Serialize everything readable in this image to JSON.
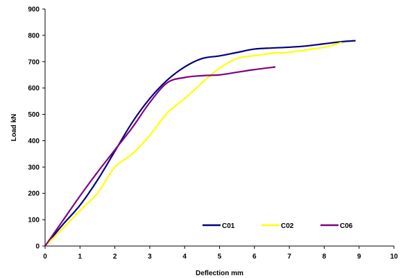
{
  "chart_data": {
    "type": "line",
    "title": "",
    "xlabel": "Deflection mm",
    "ylabel": "Load kN",
    "xlim": [
      0,
      10
    ],
    "ylim": [
      0,
      900
    ],
    "xticks": [
      0,
      1,
      2,
      3,
      4,
      5,
      6,
      7,
      8,
      9,
      10
    ],
    "yticks": [
      0,
      100,
      200,
      300,
      400,
      500,
      600,
      700,
      800,
      900
    ],
    "grid": false,
    "legend_position": "bottom-right",
    "series": [
      {
        "name": "C01",
        "color": "#000080",
        "points": [
          [
            0,
            0
          ],
          [
            0.5,
            80
          ],
          [
            1,
            155
          ],
          [
            1.5,
            250
          ],
          [
            2,
            360
          ],
          [
            2.5,
            470
          ],
          [
            3,
            560
          ],
          [
            3.5,
            630
          ],
          [
            4,
            680
          ],
          [
            4.5,
            712
          ],
          [
            5,
            722
          ],
          [
            5.5,
            735
          ],
          [
            6,
            748
          ],
          [
            6.5,
            752
          ],
          [
            7,
            755
          ],
          [
            7.5,
            760
          ],
          [
            8,
            768
          ],
          [
            8.5,
            776
          ],
          [
            8.9,
            780
          ]
        ]
      },
      {
        "name": "C02",
        "color": "#FFFF00",
        "points": [
          [
            0,
            0
          ],
          [
            0.5,
            65
          ],
          [
            1,
            135
          ],
          [
            1.5,
            200
          ],
          [
            2,
            300
          ],
          [
            2.5,
            350
          ],
          [
            3,
            420
          ],
          [
            3.5,
            505
          ],
          [
            4,
            560
          ],
          [
            4.5,
            620
          ],
          [
            5,
            675
          ],
          [
            5.5,
            712
          ],
          [
            6,
            723
          ],
          [
            6.5,
            732
          ],
          [
            7,
            736
          ],
          [
            7.5,
            745
          ],
          [
            8,
            755
          ],
          [
            8.5,
            773
          ]
        ]
      },
      {
        "name": "C06",
        "color": "#800080",
        "points": [
          [
            0,
            0
          ],
          [
            0.5,
            95
          ],
          [
            1,
            190
          ],
          [
            1.5,
            280
          ],
          [
            2,
            365
          ],
          [
            2.5,
            450
          ],
          [
            3,
            545
          ],
          [
            3.5,
            620
          ],
          [
            4,
            640
          ],
          [
            4.5,
            647
          ],
          [
            5,
            650
          ],
          [
            5.5,
            660
          ],
          [
            6,
            670
          ],
          [
            6.6,
            680
          ]
        ]
      }
    ]
  }
}
